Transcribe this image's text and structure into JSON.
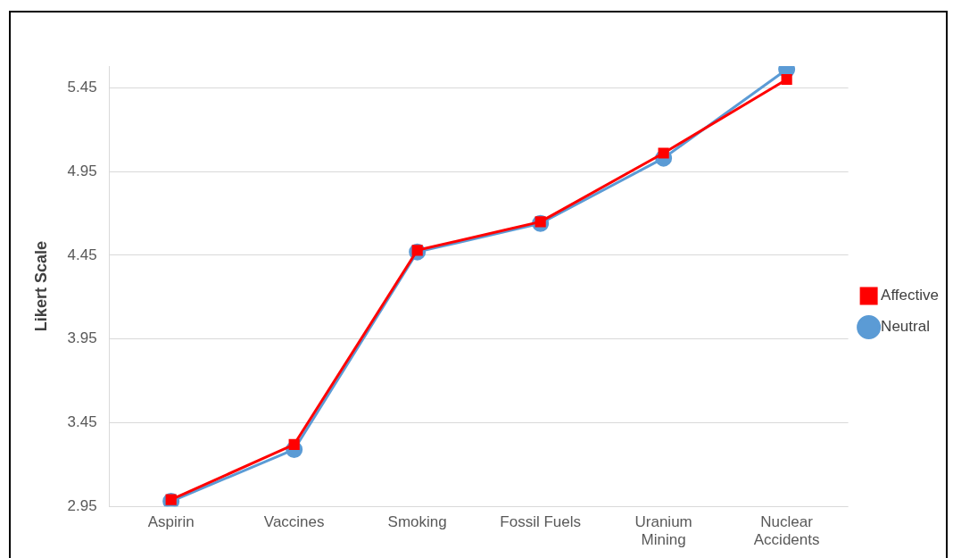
{
  "chart_data": {
    "type": "line",
    "ylabel": "Likert Scale",
    "categories": [
      "Aspirin",
      "Vaccines",
      "Smoking",
      "Fossil Fuels",
      "Uranium Mining",
      "Nuclear Accidents"
    ],
    "series": [
      {
        "name": "Neutral",
        "color": "#5b9bd5",
        "marker": "circle",
        "values": [
          2.98,
          3.29,
          4.47,
          4.64,
          5.03,
          5.56
        ]
      },
      {
        "name": "Affective",
        "color": "#ff0000",
        "marker": "square",
        "values": [
          2.99,
          3.32,
          4.48,
          4.65,
          5.06,
          5.5
        ]
      }
    ],
    "ylim": [
      2.95,
      5.58
    ],
    "yticks": [
      2.95,
      3.45,
      3.95,
      4.45,
      4.95,
      5.45
    ],
    "grid": "y",
    "legend": "right"
  }
}
